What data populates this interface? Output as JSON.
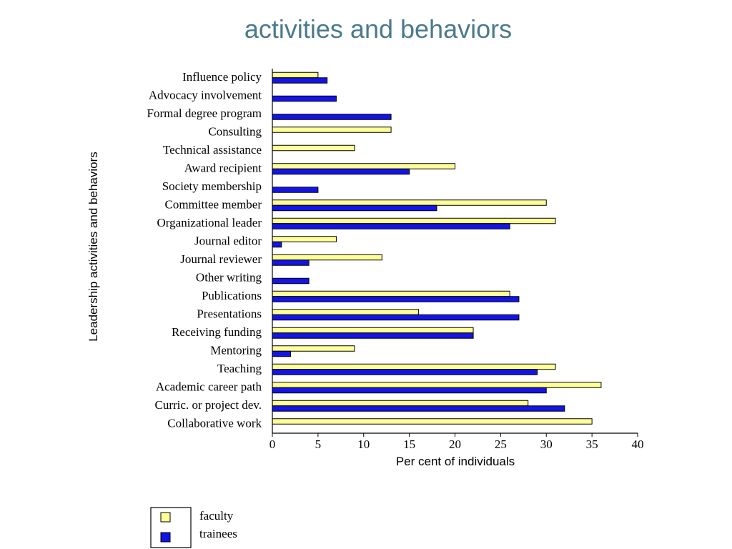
{
  "chart_data": {
    "type": "bar",
    "orientation": "horizontal",
    "title": "activities and behaviors",
    "xlabel": "Per cent of individuals",
    "ylabel": "Leadership activities and behaviors",
    "xlim": [
      0,
      40
    ],
    "xticks": [
      0,
      5,
      10,
      15,
      20,
      25,
      30,
      35,
      40
    ],
    "grid": false,
    "legend_position": "bottom-left",
    "categories": [
      "Influence policy",
      "Advocacy involvement",
      "Formal degree program",
      "Consulting",
      "Technical assistance",
      "Award recipient",
      "Society membership",
      "Committee member",
      "Organizational leader",
      "Journal editor",
      "Journal reviewer",
      "Other writing",
      "Publications",
      "Presentations",
      "Receiving funding",
      "Mentoring",
      "Teaching",
      "Academic career path",
      "Curric. or project dev.",
      "Collaborative work"
    ],
    "series": [
      {
        "name": "faculty",
        "color": "#ffff99",
        "values": [
          5,
          0,
          0,
          13,
          9,
          20,
          0,
          30,
          31,
          7,
          12,
          0,
          26,
          16,
          22,
          9,
          31,
          36,
          28,
          35
        ]
      },
      {
        "name": "trainees",
        "color": "#1414e6",
        "values": [
          6,
          7,
          13,
          0,
          0,
          15,
          5,
          18,
          26,
          1,
          4,
          4,
          27,
          27,
          22,
          2,
          29,
          30,
          32,
          0
        ]
      }
    ]
  }
}
